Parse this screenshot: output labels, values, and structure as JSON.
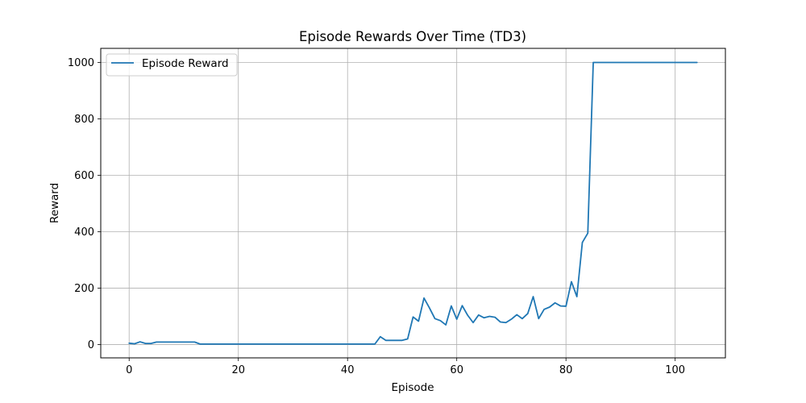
{
  "chart_data": {
    "type": "line",
    "title": "Episode Rewards Over Time (TD3)",
    "xlabel": "Episode",
    "ylabel": "Reward",
    "xlim": [
      -5.2,
      109.2
    ],
    "ylim": [
      -47,
      1050
    ],
    "xticks": [
      0,
      20,
      40,
      60,
      80,
      100
    ],
    "yticks": [
      0,
      200,
      400,
      600,
      800,
      1000
    ],
    "grid": true,
    "legend_position": "upper-left",
    "series": [
      {
        "name": "Episode Reward",
        "color": "#1f77b4",
        "x": [
          0,
          1,
          2,
          3,
          4,
          5,
          6,
          7,
          8,
          9,
          10,
          11,
          12,
          13,
          14,
          15,
          16,
          17,
          18,
          19,
          20,
          21,
          22,
          23,
          24,
          25,
          26,
          27,
          28,
          29,
          30,
          31,
          32,
          33,
          34,
          35,
          36,
          37,
          38,
          39,
          40,
          41,
          42,
          43,
          44,
          45,
          46,
          47,
          48,
          49,
          50,
          51,
          52,
          53,
          54,
          55,
          56,
          57,
          58,
          59,
          60,
          61,
          62,
          63,
          64,
          65,
          66,
          67,
          68,
          69,
          70,
          71,
          72,
          73,
          74,
          75,
          76,
          77,
          78,
          79,
          80,
          81,
          82,
          83,
          84,
          85,
          86,
          87,
          88,
          89,
          90,
          91,
          92,
          93,
          94,
          95,
          96,
          97,
          98,
          99,
          100,
          101,
          102,
          103,
          104
        ],
        "values": [
          5,
          3,
          10,
          4,
          4,
          9,
          9,
          9,
          9,
          9,
          9,
          9,
          9,
          2,
          2,
          2,
          2,
          2,
          2,
          2,
          2,
          2,
          2,
          2,
          2,
          2,
          2,
          2,
          2,
          2,
          2,
          2,
          2,
          2,
          2,
          2,
          2,
          2,
          2,
          2,
          2,
          2,
          2,
          2,
          2,
          2,
          28,
          15,
          15,
          15,
          15,
          20,
          98,
          83,
          165,
          130,
          92,
          85,
          70,
          137,
          90,
          138,
          104,
          78,
          105,
          95,
          100,
          97,
          80,
          78,
          90,
          106,
          92,
          110,
          170,
          92,
          125,
          133,
          148,
          137,
          136,
          223,
          170,
          362,
          395,
          1000,
          1000,
          1000,
          1000,
          1000,
          1000,
          1000,
          1000,
          1000,
          1000,
          1000,
          1000,
          1000,
          1000,
          1000,
          1000,
          1000,
          1000,
          1000,
          1000
        ]
      }
    ]
  }
}
